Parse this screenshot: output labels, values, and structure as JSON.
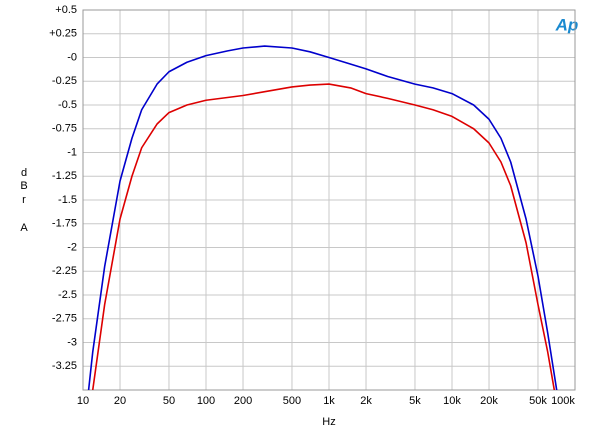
{
  "chart_data": {
    "type": "line",
    "xlabel": "Hz",
    "ylabel": [
      "d",
      "B",
      "r",
      "A"
    ],
    "logo": "Ap",
    "xlog": true,
    "grid": true,
    "xlim": [
      10,
      100000
    ],
    "xticks": [
      10,
      20,
      50,
      100,
      200,
      500,
      {
        "value": 1000,
        "label": "1k"
      },
      {
        "value": 2000,
        "label": "2k"
      },
      {
        "value": 5000,
        "label": "5k"
      },
      {
        "value": 10000,
        "label": "10k"
      },
      {
        "value": 20000,
        "label": "20k"
      },
      {
        "value": 50000,
        "label": "50k"
      },
      {
        "value": 100000,
        "label": "100k"
      }
    ],
    "ylim": [
      -3.5,
      0.5
    ],
    "yticks": [
      {
        "value": 0.5,
        "label": "+0.5"
      },
      {
        "value": 0.25,
        "label": "+0.25"
      },
      {
        "value": 0,
        "label": "-0"
      },
      -0.25,
      -0.5,
      -0.75,
      -1,
      -1.25,
      -1.5,
      -1.75,
      -2,
      -2.25,
      -2.5,
      -2.75,
      -3,
      -3.25
    ],
    "series": [
      {
        "color": "#0000cc",
        "x": [
          11,
          12,
          15,
          20,
          25,
          30,
          40,
          50,
          70,
          100,
          150,
          200,
          300,
          500,
          700,
          1000,
          1500,
          2000,
          3000,
          5000,
          7000,
          10000,
          15000,
          20000,
          25000,
          30000,
          40000,
          50000,
          60000,
          70000,
          75000
        ],
        "values": [
          -3.55,
          -3.1,
          -2.2,
          -1.3,
          -0.85,
          -0.55,
          -0.28,
          -0.15,
          -0.05,
          0.02,
          0.07,
          0.1,
          0.12,
          0.1,
          0.06,
          0.0,
          -0.07,
          -0.12,
          -0.2,
          -0.28,
          -0.32,
          -0.38,
          -0.5,
          -0.65,
          -0.85,
          -1.1,
          -1.7,
          -2.3,
          -2.9,
          -3.45,
          -3.7
        ]
      },
      {
        "color": "#dd0000",
        "x": [
          12,
          15,
          20,
          25,
          30,
          40,
          50,
          70,
          100,
          200,
          300,
          500,
          700,
          1000,
          1500,
          2000,
          3000,
          5000,
          7000,
          10000,
          15000,
          20000,
          25000,
          30000,
          40000,
          50000,
          60000,
          70000
        ],
        "values": [
          -3.5,
          -2.6,
          -1.7,
          -1.25,
          -0.95,
          -0.7,
          -0.58,
          -0.5,
          -0.45,
          -0.4,
          -0.36,
          -0.31,
          -0.29,
          -0.28,
          -0.32,
          -0.38,
          -0.43,
          -0.5,
          -0.55,
          -0.62,
          -0.75,
          -0.9,
          -1.1,
          -1.35,
          -1.95,
          -2.6,
          -3.1,
          -3.6
        ]
      }
    ]
  }
}
